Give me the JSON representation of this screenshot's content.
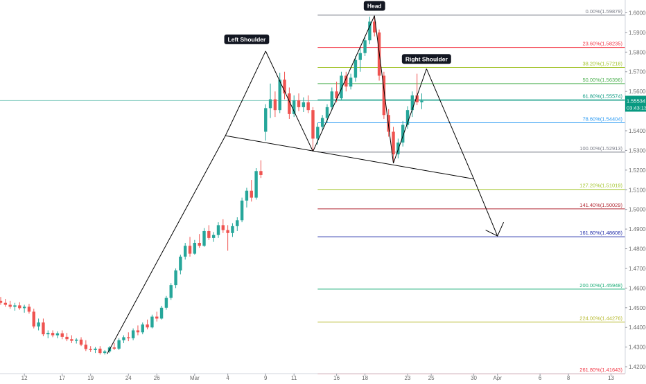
{
  "chart_data": {
    "type": "candlestick",
    "title": "",
    "xlabel": "",
    "ylabel": "",
    "ylim": [
      1.4165,
      1.6065
    ],
    "xlim": [
      0,
      132
    ],
    "y_ticks": [
      {
        "v": 1.6,
        "label": "1.60000"
      },
      {
        "v": 1.59,
        "label": "1.59000"
      },
      {
        "v": 1.58,
        "label": "1.58000"
      },
      {
        "v": 1.57,
        "label": "1.57000"
      },
      {
        "v": 1.56,
        "label": "1.56000"
      },
      {
        "v": 1.54,
        "label": "1.54000"
      },
      {
        "v": 1.53,
        "label": "1.53000"
      },
      {
        "v": 1.52,
        "label": "1.52000"
      },
      {
        "v": 1.51,
        "label": "1.51000"
      },
      {
        "v": 1.5,
        "label": "1.50000"
      },
      {
        "v": 1.49,
        "label": "1.49000"
      },
      {
        "v": 1.48,
        "label": "1.48000"
      },
      {
        "v": 1.47,
        "label": "1.47000"
      },
      {
        "v": 1.46,
        "label": "1.46000"
      },
      {
        "v": 1.45,
        "label": "1.45000"
      },
      {
        "v": 1.44,
        "label": "1.44000"
      },
      {
        "v": 1.43,
        "label": "1.43000"
      },
      {
        "v": 1.42,
        "label": "1.42000"
      }
    ],
    "x_ticks": [
      {
        "t": 5,
        "label": "12"
      },
      {
        "t": 13,
        "label": "17"
      },
      {
        "t": 19,
        "label": "19"
      },
      {
        "t": 27,
        "label": "24"
      },
      {
        "t": 33,
        "label": "26"
      },
      {
        "t": 41,
        "label": "Mar"
      },
      {
        "t": 48,
        "label": "4"
      },
      {
        "t": 56,
        "label": "9"
      },
      {
        "t": 62,
        "label": "11"
      },
      {
        "t": 71,
        "label": "16"
      },
      {
        "t": 77,
        "label": "18"
      },
      {
        "t": 86,
        "label": "23"
      },
      {
        "t": 91,
        "label": "25"
      },
      {
        "t": 100,
        "label": "30"
      },
      {
        "t": 105,
        "label": "Apr"
      },
      {
        "t": 114,
        "label": "6"
      },
      {
        "t": 120,
        "label": "8"
      },
      {
        "t": 129,
        "label": "13"
      }
    ],
    "current_price": {
      "value": 1.55534,
      "label": "1.55534",
      "countdown": "03:43:13",
      "color": "#089981"
    },
    "colors": {
      "up": "#26a69a",
      "down": "#ef5350",
      "pattern": "#000000",
      "grid": "#000000"
    },
    "fib_levels": [
      {
        "ratio": "0.00%",
        "price": 1.59879,
        "label": "0.00%(1.59879)",
        "color": "#787b86"
      },
      {
        "ratio": "23.60%",
        "price": 1.58235,
        "label": "23.60%(1.58235)",
        "color": "#f23645"
      },
      {
        "ratio": "38.20%",
        "price": 1.57218,
        "label": "38.20%(1.57218)",
        "color": "#a4c52e"
      },
      {
        "ratio": "50.00%",
        "price": 1.56396,
        "label": "50.00%(1.56396)",
        "color": "#4caf50"
      },
      {
        "ratio": "61.80%",
        "price": 1.55574,
        "label": "61.80%(1.55574)",
        "color": "#089981"
      },
      {
        "ratio": "78.60%",
        "price": 1.54404,
        "label": "78.60%(1.54404)",
        "color": "#2196f3"
      },
      {
        "ratio": "100.00%",
        "price": 1.52913,
        "label": "100.00%(1.52913)",
        "color": "#787b86"
      },
      {
        "ratio": "127.20%",
        "price": 1.51019,
        "label": "127.20%(1.51019)",
        "color": "#a4c52e"
      },
      {
        "ratio": "141.40%",
        "price": 1.50029,
        "label": "141.40%(1.50029)",
        "color": "#b22833"
      },
      {
        "ratio": "161.80%",
        "price": 1.48608,
        "label": "161.80%(1.48608)",
        "color": "#1e2aa8"
      },
      {
        "ratio": "200.00%",
        "price": 1.45948,
        "label": "200.00%(1.45948)",
        "color": "#1bae77"
      },
      {
        "ratio": "224.00%",
        "price": 1.44276,
        "label": "224.00%(1.44276)",
        "color": "#b5b82a"
      },
      {
        "ratio": "261.80%",
        "price": 1.41643,
        "label": "261.80%(1.41643)",
        "color": "#f23645"
      }
    ],
    "fib_start_t": 67,
    "pattern_lines": [
      [
        [
          22.5,
          1.4265
        ],
        [
          47.5,
          1.5375
        ]
      ],
      [
        [
          47.5,
          1.5375
        ],
        [
          56,
          1.5805
        ]
      ],
      [
        [
          56,
          1.5805
        ],
        [
          66,
          1.5295
        ]
      ],
      [
        [
          66,
          1.5295
        ],
        [
          79,
          1.5985
        ]
      ],
      [
        [
          79,
          1.5985
        ],
        [
          83,
          1.5235
        ]
      ],
      [
        [
          83,
          1.5235
        ],
        [
          90,
          1.5715
        ]
      ],
      [
        [
          90,
          1.5715
        ],
        [
          100,
          1.5155
        ]
      ],
      [
        [
          47.5,
          1.5375
        ],
        [
          100,
          1.5155
        ]
      ],
      [
        [
          100,
          1.5155
        ],
        [
          105,
          1.4865
        ]
      ]
    ],
    "arrow_head": [
      [
        102.5,
        1.4895
      ],
      [
        105,
        1.4865
      ],
      [
        106.3,
        1.4935
      ]
    ],
    "annotations": [
      {
        "text": "Left Shoulder",
        "t": 52,
        "y": 1.5865
      },
      {
        "text": "Head",
        "t": 79,
        "y": 1.6035
      },
      {
        "text": "Right Shoulder",
        "t": 90,
        "y": 1.5765
      }
    ],
    "candles": [
      {
        "t": 0,
        "o": 1.4535,
        "h": 1.4555,
        "l": 1.4515,
        "c": 1.4525
      },
      {
        "t": 1,
        "o": 1.4525,
        "h": 1.4545,
        "l": 1.4505,
        "c": 1.4515
      },
      {
        "t": 2,
        "o": 1.4515,
        "h": 1.4535,
        "l": 1.4495,
        "c": 1.4505
      },
      {
        "t": 3,
        "o": 1.4505,
        "h": 1.4525,
        "l": 1.4485,
        "c": 1.4512
      },
      {
        "t": 4,
        "o": 1.4512,
        "h": 1.4528,
        "l": 1.449,
        "c": 1.4498
      },
      {
        "t": 5,
        "o": 1.4498,
        "h": 1.4515,
        "l": 1.4475,
        "c": 1.4505
      },
      {
        "t": 6,
        "o": 1.4505,
        "h": 1.452,
        "l": 1.447,
        "c": 1.448
      },
      {
        "t": 7,
        "o": 1.448,
        "h": 1.4495,
        "l": 1.4395,
        "c": 1.4405
      },
      {
        "t": 8,
        "o": 1.4405,
        "h": 1.4445,
        "l": 1.4385,
        "c": 1.4425
      },
      {
        "t": 9,
        "o": 1.4425,
        "h": 1.4445,
        "l": 1.4355,
        "c": 1.4365
      },
      {
        "t": 10,
        "o": 1.4365,
        "h": 1.4385,
        "l": 1.4345,
        "c": 1.4372
      },
      {
        "t": 11,
        "o": 1.4372,
        "h": 1.4385,
        "l": 1.435,
        "c": 1.436
      },
      {
        "t": 12,
        "o": 1.436,
        "h": 1.438,
        "l": 1.4345,
        "c": 1.437
      },
      {
        "t": 13,
        "o": 1.437,
        "h": 1.4385,
        "l": 1.434,
        "c": 1.4352
      },
      {
        "t": 14,
        "o": 1.4352,
        "h": 1.4372,
        "l": 1.433,
        "c": 1.434
      },
      {
        "t": 15,
        "o": 1.434,
        "h": 1.436,
        "l": 1.432,
        "c": 1.4332
      },
      {
        "t": 16,
        "o": 1.4332,
        "h": 1.4345,
        "l": 1.4318,
        "c": 1.4338
      },
      {
        "t": 17,
        "o": 1.4338,
        "h": 1.435,
        "l": 1.4305,
        "c": 1.4312
      },
      {
        "t": 18,
        "o": 1.4312,
        "h": 1.4335,
        "l": 1.428,
        "c": 1.429
      },
      {
        "t": 19,
        "o": 1.429,
        "h": 1.4305,
        "l": 1.4275,
        "c": 1.4285
      },
      {
        "t": 20,
        "o": 1.4285,
        "h": 1.43,
        "l": 1.427,
        "c": 1.4292
      },
      {
        "t": 21,
        "o": 1.4292,
        "h": 1.4305,
        "l": 1.4262,
        "c": 1.427
      },
      {
        "t": 22,
        "o": 1.427,
        "h": 1.4285,
        "l": 1.4262,
        "c": 1.4278
      },
      {
        "t": 23,
        "o": 1.4278,
        "h": 1.4305,
        "l": 1.427,
        "c": 1.4298
      },
      {
        "t": 24,
        "o": 1.4298,
        "h": 1.432,
        "l": 1.4285,
        "c": 1.4292
      },
      {
        "t": 25,
        "o": 1.4292,
        "h": 1.4345,
        "l": 1.4285,
        "c": 1.4335
      },
      {
        "t": 26,
        "o": 1.4335,
        "h": 1.436,
        "l": 1.432,
        "c": 1.435
      },
      {
        "t": 27,
        "o": 1.435,
        "h": 1.4375,
        "l": 1.433,
        "c": 1.4345
      },
      {
        "t": 28,
        "o": 1.4345,
        "h": 1.4395,
        "l": 1.4335,
        "c": 1.4385
      },
      {
        "t": 29,
        "o": 1.4385,
        "h": 1.441,
        "l": 1.436,
        "c": 1.4375
      },
      {
        "t": 30,
        "o": 1.4375,
        "h": 1.4425,
        "l": 1.4365,
        "c": 1.4415
      },
      {
        "t": 31,
        "o": 1.4415,
        "h": 1.444,
        "l": 1.439,
        "c": 1.44
      },
      {
        "t": 32,
        "o": 1.44,
        "h": 1.4465,
        "l": 1.4395,
        "c": 1.4455
      },
      {
        "t": 33,
        "o": 1.4455,
        "h": 1.448,
        "l": 1.443,
        "c": 1.4445
      },
      {
        "t": 34,
        "o": 1.4445,
        "h": 1.451,
        "l": 1.444,
        "c": 1.45
      },
      {
        "t": 35,
        "o": 1.45,
        "h": 1.456,
        "l": 1.449,
        "c": 1.455
      },
      {
        "t": 36,
        "o": 1.455,
        "h": 1.4625,
        "l": 1.454,
        "c": 1.4615
      },
      {
        "t": 37,
        "o": 1.4615,
        "h": 1.47,
        "l": 1.46,
        "c": 1.469
      },
      {
        "t": 38,
        "o": 1.469,
        "h": 1.477,
        "l": 1.467,
        "c": 1.476
      },
      {
        "t": 39,
        "o": 1.476,
        "h": 1.483,
        "l": 1.4745,
        "c": 1.4815
      },
      {
        "t": 40,
        "o": 1.4815,
        "h": 1.486,
        "l": 1.476,
        "c": 1.4775
      },
      {
        "t": 41,
        "o": 1.4775,
        "h": 1.4845,
        "l": 1.477,
        "c": 1.483
      },
      {
        "t": 42,
        "o": 1.483,
        "h": 1.4875,
        "l": 1.4805,
        "c": 1.4815
      },
      {
        "t": 43,
        "o": 1.4815,
        "h": 1.4905,
        "l": 1.481,
        "c": 1.489
      },
      {
        "t": 44,
        "o": 1.489,
        "h": 1.492,
        "l": 1.4845,
        "c": 1.4855
      },
      {
        "t": 45,
        "o": 1.4855,
        "h": 1.4885,
        "l": 1.4835,
        "c": 1.487
      },
      {
        "t": 46,
        "o": 1.487,
        "h": 1.4935,
        "l": 1.4855,
        "c": 1.492
      },
      {
        "t": 47,
        "o": 1.492,
        "h": 1.495,
        "l": 1.488,
        "c": 1.4895
      },
      {
        "t": 48,
        "o": 1.4895,
        "h": 1.492,
        "l": 1.479,
        "c": 1.488
      },
      {
        "t": 49,
        "o": 1.488,
        "h": 1.493,
        "l": 1.486,
        "c": 1.4915
      },
      {
        "t": 50,
        "o": 1.4915,
        "h": 1.496,
        "l": 1.489,
        "c": 1.4945
      },
      {
        "t": 51,
        "o": 1.4945,
        "h": 1.506,
        "l": 1.4935,
        "c": 1.5045
      },
      {
        "t": 52,
        "o": 1.5045,
        "h": 1.511,
        "l": 1.501,
        "c": 1.5095
      },
      {
        "t": 53,
        "o": 1.5095,
        "h": 1.515,
        "l": 1.504,
        "c": 1.506
      },
      {
        "t": 54,
        "o": 1.506,
        "h": 1.521,
        "l": 1.505,
        "c": 1.5195
      },
      {
        "t": 55,
        "o": 1.5195,
        "h": 1.525,
        "l": 1.516,
        "c": 1.5175
      },
      {
        "t": 56,
        "o": 1.5395,
        "h": 1.5535,
        "l": 1.535,
        "c": 1.5515
      },
      {
        "t": 57,
        "o": 1.5515,
        "h": 1.564,
        "l": 1.5465,
        "c": 1.556
      },
      {
        "t": 58,
        "o": 1.556,
        "h": 1.56,
        "l": 1.547,
        "c": 1.5505
      },
      {
        "t": 59,
        "o": 1.5505,
        "h": 1.5695,
        "l": 1.549,
        "c": 1.566
      },
      {
        "t": 60,
        "o": 1.566,
        "h": 1.57,
        "l": 1.556,
        "c": 1.559
      },
      {
        "t": 61,
        "o": 1.559,
        "h": 1.562,
        "l": 1.546,
        "c": 1.5485
      },
      {
        "t": 62,
        "o": 1.5485,
        "h": 1.558,
        "l": 1.547,
        "c": 1.5555
      },
      {
        "t": 63,
        "o": 1.5555,
        "h": 1.559,
        "l": 1.55,
        "c": 1.552
      },
      {
        "t": 64,
        "o": 1.552,
        "h": 1.557,
        "l": 1.5495,
        "c": 1.5545
      },
      {
        "t": 65,
        "o": 1.5545,
        "h": 1.558,
        "l": 1.549,
        "c": 1.5505
      },
      {
        "t": 66,
        "o": 1.5505,
        "h": 1.552,
        "l": 1.5295,
        "c": 1.536
      },
      {
        "t": 67,
        "o": 1.536,
        "h": 1.544,
        "l": 1.533,
        "c": 1.542
      },
      {
        "t": 68,
        "o": 1.542,
        "h": 1.548,
        "l": 1.5405,
        "c": 1.5465
      },
      {
        "t": 69,
        "o": 1.5465,
        "h": 1.5535,
        "l": 1.544,
        "c": 1.552
      },
      {
        "t": 70,
        "o": 1.552,
        "h": 1.562,
        "l": 1.5505,
        "c": 1.56
      },
      {
        "t": 71,
        "o": 1.56,
        "h": 1.565,
        "l": 1.5545,
        "c": 1.5565
      },
      {
        "t": 72,
        "o": 1.5565,
        "h": 1.57,
        "l": 1.5555,
        "c": 1.568
      },
      {
        "t": 73,
        "o": 1.568,
        "h": 1.57,
        "l": 1.56,
        "c": 1.5625
      },
      {
        "t": 74,
        "o": 1.5625,
        "h": 1.569,
        "l": 1.561,
        "c": 1.567
      },
      {
        "t": 75,
        "o": 1.567,
        "h": 1.578,
        "l": 1.565,
        "c": 1.576
      },
      {
        "t": 76,
        "o": 1.576,
        "h": 1.582,
        "l": 1.57,
        "c": 1.5795
      },
      {
        "t": 77,
        "o": 1.5795,
        "h": 1.588,
        "l": 1.578,
        "c": 1.586
      },
      {
        "t": 78,
        "o": 1.586,
        "h": 1.598,
        "l": 1.584,
        "c": 1.5955
      },
      {
        "t": 79,
        "o": 1.5955,
        "h": 1.5985,
        "l": 1.588,
        "c": 1.59
      },
      {
        "t": 80,
        "o": 1.59,
        "h": 1.5915,
        "l": 1.5655,
        "c": 1.568
      },
      {
        "t": 81,
        "o": 1.568,
        "h": 1.57,
        "l": 1.546,
        "c": 1.548
      },
      {
        "t": 82,
        "o": 1.548,
        "h": 1.551,
        "l": 1.537,
        "c": 1.5395
      },
      {
        "t": 83,
        "o": 1.5395,
        "h": 1.542,
        "l": 1.5235,
        "c": 1.528
      },
      {
        "t": 84,
        "o": 1.528,
        "h": 1.536,
        "l": 1.526,
        "c": 1.534
      },
      {
        "t": 85,
        "o": 1.534,
        "h": 1.545,
        "l": 1.532,
        "c": 1.543
      },
      {
        "t": 86,
        "o": 1.543,
        "h": 1.5525,
        "l": 1.541,
        "c": 1.5505
      },
      {
        "t": 87,
        "o": 1.5505,
        "h": 1.56,
        "l": 1.547,
        "c": 1.558
      },
      {
        "t": 88,
        "o": 1.558,
        "h": 1.569,
        "l": 1.553,
        "c": 1.5545
      },
      {
        "t": 89,
        "o": 1.5545,
        "h": 1.559,
        "l": 1.551,
        "c": 1.5553
      }
    ]
  }
}
